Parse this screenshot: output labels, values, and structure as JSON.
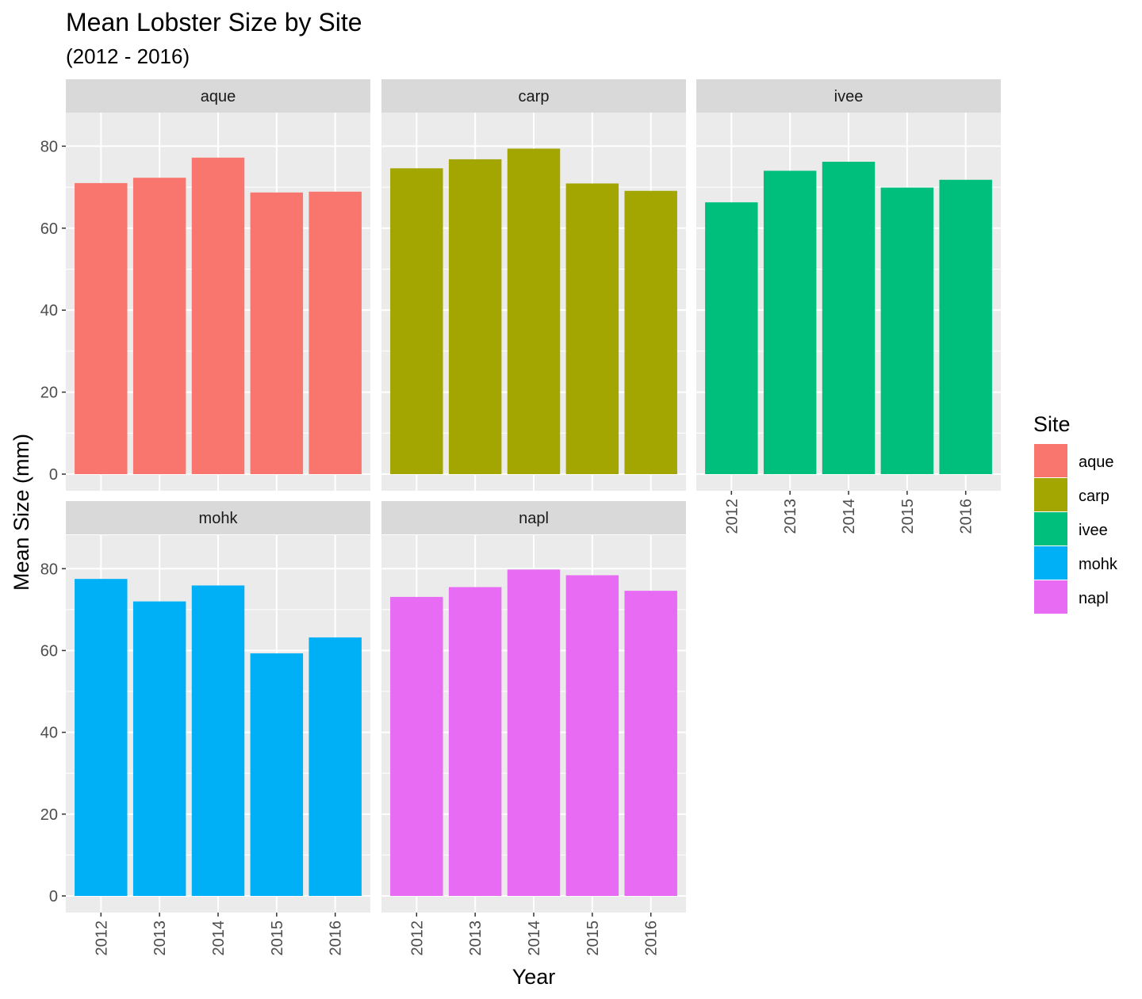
{
  "chart_data": {
    "type": "bar",
    "title": "Mean Lobster Size by Site",
    "subtitle": "(2012 - 2016)",
    "xlabel": "Year",
    "ylabel": "Mean Size (mm)",
    "categories": [
      "2012",
      "2013",
      "2014",
      "2015",
      "2016"
    ],
    "y_ticks": [
      "0",
      "20",
      "40",
      "60",
      "80"
    ],
    "ylim": [
      0,
      88
    ],
    "grid": true,
    "facets": [
      {
        "name": "aque",
        "color": "#F8766D",
        "values": [
          71.0,
          72.3,
          77.2,
          68.7,
          68.9
        ]
      },
      {
        "name": "carp",
        "color": "#A3A500",
        "values": [
          74.6,
          76.8,
          79.4,
          70.9,
          69.1
        ]
      },
      {
        "name": "ivee",
        "color": "#00BF7D",
        "values": [
          66.3,
          74.0,
          76.2,
          69.9,
          71.8
        ]
      },
      {
        "name": "mohk",
        "color": "#00B0F6",
        "values": [
          77.5,
          72.0,
          75.9,
          59.3,
          63.2
        ]
      },
      {
        "name": "napl",
        "color": "#E76BF3",
        "values": [
          73.1,
          75.5,
          79.8,
          78.4,
          74.6
        ]
      }
    ],
    "legend": {
      "title": "Site",
      "position": "right"
    }
  }
}
